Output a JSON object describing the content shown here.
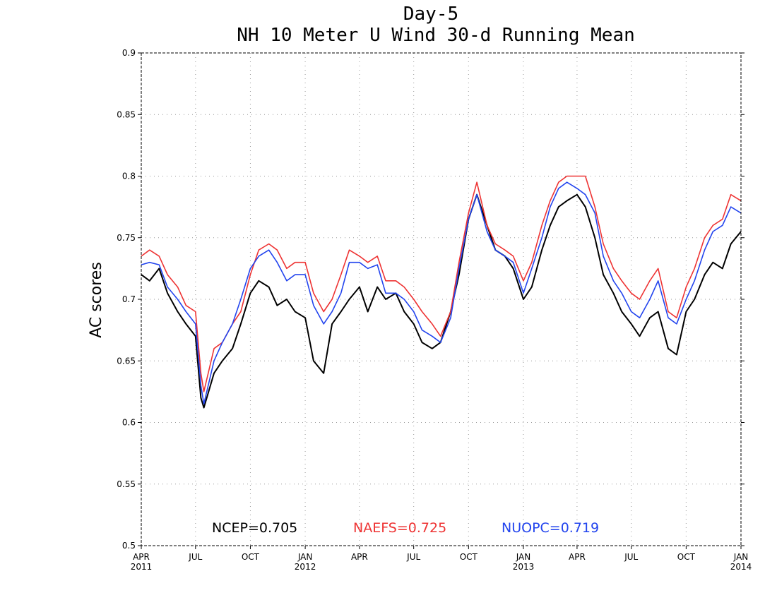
{
  "chart_data": {
    "type": "line",
    "title": "Day-5",
    "subtitle": "NH 10 Meter U Wind 30-d Running Mean",
    "ylabel": "AC scores",
    "xlabel": "",
    "ylim": [
      0.5,
      0.9
    ],
    "xlim": [
      "2011-04-01",
      "2014-01-01"
    ],
    "yticks": [
      "0.5",
      "0.55",
      "0.6",
      "0.65",
      "0.7",
      "0.75",
      "0.8",
      "0.85",
      "0.9"
    ],
    "xticks": [
      {
        "date": "2011-04-01",
        "label": "APR",
        "sub": "2011"
      },
      {
        "date": "2011-07-01",
        "label": "JUL",
        "sub": ""
      },
      {
        "date": "2011-10-01",
        "label": "OCT",
        "sub": ""
      },
      {
        "date": "2012-01-01",
        "label": "JAN",
        "sub": "2012"
      },
      {
        "date": "2012-04-01",
        "label": "APR",
        "sub": ""
      },
      {
        "date": "2012-07-01",
        "label": "JUL",
        "sub": ""
      },
      {
        "date": "2012-10-01",
        "label": "OCT",
        "sub": ""
      },
      {
        "date": "2013-01-01",
        "label": "JAN",
        "sub": "2013"
      },
      {
        "date": "2013-04-01",
        "label": "APR",
        "sub": ""
      },
      {
        "date": "2013-07-01",
        "label": "JUL",
        "sub": ""
      },
      {
        "date": "2013-10-01",
        "label": "OCT",
        "sub": ""
      },
      {
        "date": "2014-01-01",
        "label": "JAN",
        "sub": "2014"
      }
    ],
    "grid": true,
    "legend_position": "bottom-center",
    "x": [
      "2011-04-01",
      "2011-04-15",
      "2011-05-01",
      "2011-05-15",
      "2011-06-01",
      "2011-06-15",
      "2011-07-01",
      "2011-07-10",
      "2011-07-15",
      "2011-08-01",
      "2011-08-15",
      "2011-09-01",
      "2011-09-15",
      "2011-10-01",
      "2011-10-15",
      "2011-11-01",
      "2011-11-15",
      "2011-12-01",
      "2011-12-15",
      "2012-01-01",
      "2012-01-15",
      "2012-02-01",
      "2012-02-15",
      "2012-03-01",
      "2012-03-15",
      "2012-04-01",
      "2012-04-15",
      "2012-05-01",
      "2012-05-15",
      "2012-06-01",
      "2012-06-15",
      "2012-07-01",
      "2012-07-15",
      "2012-08-01",
      "2012-08-15",
      "2012-09-01",
      "2012-09-15",
      "2012-10-01",
      "2012-10-15",
      "2012-11-01",
      "2012-11-15",
      "2012-12-01",
      "2012-12-15",
      "2013-01-01",
      "2013-01-15",
      "2013-02-01",
      "2013-02-15",
      "2013-03-01",
      "2013-03-15",
      "2013-04-01",
      "2013-04-15",
      "2013-05-01",
      "2013-05-15",
      "2013-06-01",
      "2013-06-15",
      "2013-07-01",
      "2013-07-15",
      "2013-08-01",
      "2013-08-15",
      "2013-09-01",
      "2013-09-15",
      "2013-10-01",
      "2013-10-15",
      "2013-11-01",
      "2013-11-15",
      "2013-12-01",
      "2013-12-15",
      "2014-01-01"
    ],
    "series": [
      {
        "name": "NCEP",
        "label": "NCEP=0.705",
        "color": "#000000",
        "values": [
          0.72,
          0.715,
          0.725,
          0.705,
          0.69,
          0.68,
          0.67,
          0.62,
          0.612,
          0.64,
          0.65,
          0.66,
          0.68,
          0.705,
          0.715,
          0.71,
          0.695,
          0.7,
          0.69,
          0.685,
          0.65,
          0.64,
          0.68,
          0.69,
          0.7,
          0.71,
          0.69,
          0.71,
          0.7,
          0.705,
          0.69,
          0.68,
          0.665,
          0.66,
          0.665,
          0.69,
          0.72,
          0.765,
          0.785,
          0.76,
          0.74,
          0.735,
          0.725,
          0.7,
          0.71,
          0.74,
          0.76,
          0.775,
          0.78,
          0.785,
          0.775,
          0.75,
          0.72,
          0.705,
          0.69,
          0.68,
          0.67,
          0.685,
          0.69,
          0.66,
          0.655,
          0.69,
          0.7,
          0.72,
          0.73,
          0.725,
          0.745,
          0.755
        ]
      },
      {
        "name": "NAEFS",
        "label": "NAEFS=0.725",
        "color": "#ee3333",
        "values": [
          0.735,
          0.74,
          0.735,
          0.72,
          0.71,
          0.695,
          0.69,
          0.64,
          0.625,
          0.66,
          0.665,
          0.68,
          0.69,
          0.72,
          0.74,
          0.745,
          0.74,
          0.725,
          0.73,
          0.73,
          0.705,
          0.69,
          0.7,
          0.72,
          0.74,
          0.735,
          0.73,
          0.735,
          0.715,
          0.715,
          0.71,
          0.7,
          0.69,
          0.68,
          0.67,
          0.69,
          0.73,
          0.77,
          0.795,
          0.76,
          0.745,
          0.74,
          0.735,
          0.715,
          0.73,
          0.76,
          0.78,
          0.795,
          0.8,
          0.8,
          0.8,
          0.775,
          0.745,
          0.725,
          0.715,
          0.705,
          0.7,
          0.715,
          0.725,
          0.69,
          0.685,
          0.71,
          0.725,
          0.75,
          0.76,
          0.765,
          0.785,
          0.78
        ]
      },
      {
        "name": "NUOPC",
        "label": "NUOPC=0.719",
        "color": "#2244ee",
        "values": [
          0.728,
          0.73,
          0.728,
          0.71,
          0.7,
          0.69,
          0.68,
          0.63,
          0.615,
          0.65,
          0.665,
          0.68,
          0.7,
          0.725,
          0.735,
          0.74,
          0.73,
          0.715,
          0.72,
          0.72,
          0.695,
          0.68,
          0.69,
          0.705,
          0.73,
          0.73,
          0.725,
          0.728,
          0.705,
          0.705,
          0.7,
          0.69,
          0.675,
          0.67,
          0.665,
          0.685,
          0.725,
          0.765,
          0.785,
          0.755,
          0.74,
          0.735,
          0.73,
          0.705,
          0.725,
          0.75,
          0.775,
          0.79,
          0.795,
          0.79,
          0.785,
          0.77,
          0.735,
          0.715,
          0.705,
          0.69,
          0.685,
          0.7,
          0.715,
          0.685,
          0.68,
          0.7,
          0.715,
          0.74,
          0.755,
          0.76,
          0.775,
          0.77
        ]
      }
    ]
  }
}
